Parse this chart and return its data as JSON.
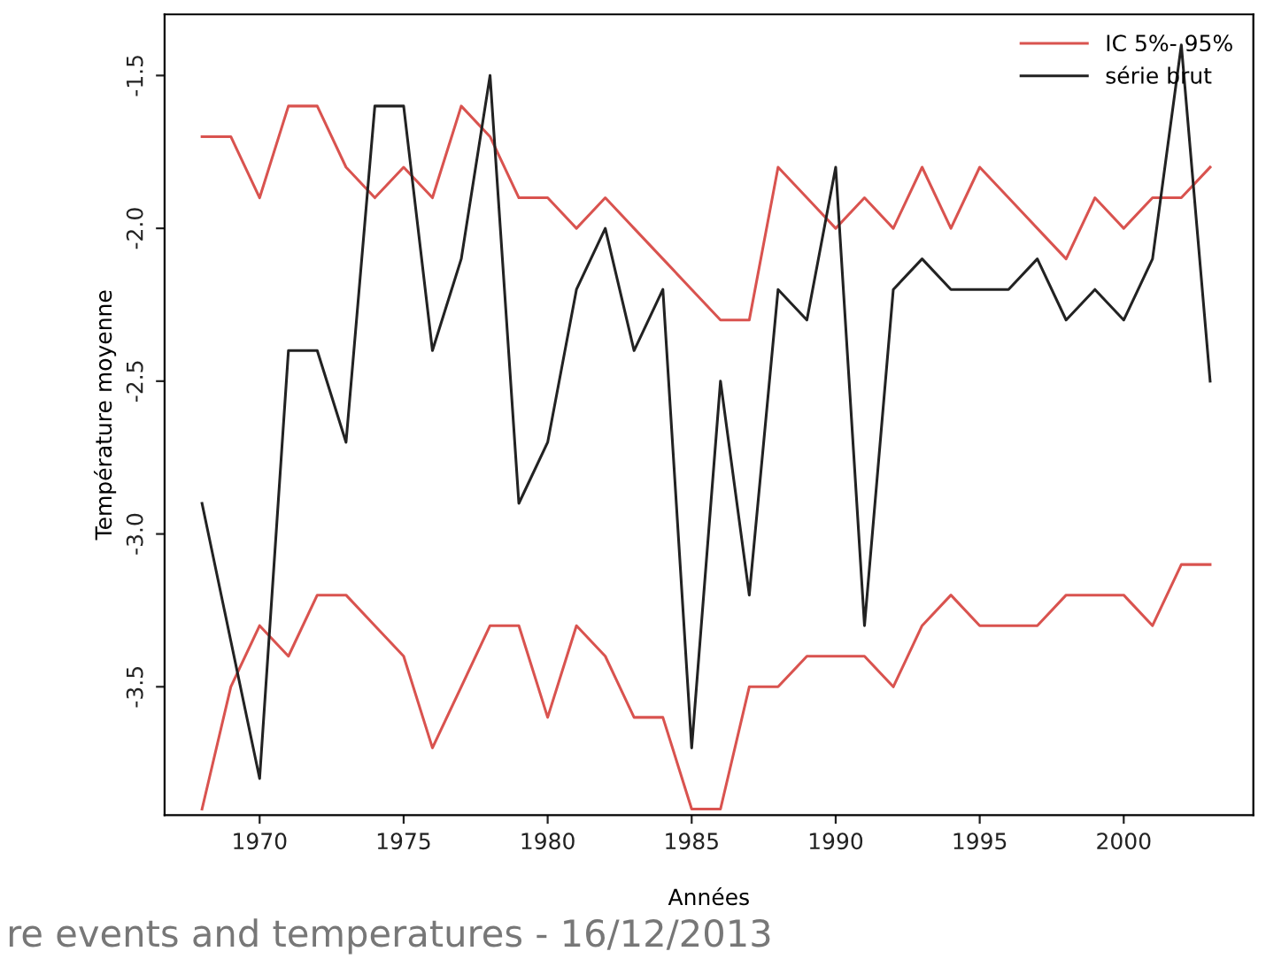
{
  "chart_data": {
    "type": "line",
    "xlabel": "Années",
    "ylabel": "Température moyenne",
    "x": [
      1968,
      1969,
      1970,
      1971,
      1972,
      1973,
      1974,
      1975,
      1976,
      1977,
      1978,
      1979,
      1980,
      1981,
      1982,
      1983,
      1984,
      1985,
      1986,
      1987,
      1988,
      1989,
      1990,
      1991,
      1992,
      1993,
      1994,
      1995,
      1996,
      1997,
      1998,
      1999,
      2000,
      2001,
      2002,
      2003
    ],
    "series": [
      {
        "name": "IC 5%- 95%",
        "color": "#d9534f",
        "values": [
          -1.7,
          -1.7,
          -1.9,
          -1.6,
          -1.6,
          -1.8,
          -1.9,
          -1.8,
          -1.9,
          -1.6,
          -1.7,
          -1.9,
          -1.9,
          -2.0,
          -1.9,
          -2.0,
          -2.1,
          -2.2,
          -2.3,
          -2.3,
          -1.8,
          -1.9,
          -2.0,
          -1.9,
          -2.0,
          -1.8,
          -2.0,
          -1.8,
          -1.9,
          -2.0,
          -2.1,
          -1.9,
          -2.0,
          -1.9,
          -1.9,
          -1.8
        ]
      },
      {
        "color": "#d9534f",
        "values": [
          -3.9,
          -3.5,
          -3.3,
          -3.4,
          -3.2,
          -3.2,
          -3.3,
          -3.4,
          -3.7,
          -3.5,
          -3.3,
          -3.3,
          -3.6,
          -3.3,
          -3.4,
          -3.6,
          -3.6,
          -3.9,
          -3.9,
          -3.5,
          -3.5,
          -3.4,
          -3.4,
          -3.4,
          -3.5,
          -3.3,
          -3.2,
          -3.3,
          -3.3,
          -3.3,
          -3.2,
          -3.2,
          -3.2,
          -3.3,
          -3.1,
          -3.1
        ]
      },
      {
        "name": "série brut",
        "color": "#222222",
        "values": [
          -2.9,
          -3.35,
          -3.8,
          -2.4,
          -2.4,
          -2.7,
          -1.6,
          -1.6,
          -2.4,
          -2.1,
          -1.5,
          -2.9,
          -2.7,
          -2.2,
          -2.0,
          -2.4,
          -2.2,
          -3.7,
          -2.5,
          -3.2,
          -2.2,
          -2.3,
          -1.8,
          -3.3,
          -2.2,
          -2.1,
          -2.2,
          -2.2,
          -2.2,
          -2.1,
          -2.3,
          -2.2,
          -2.3,
          -2.1,
          -1.4,
          -2.5
        ]
      }
    ],
    "xlim": [
      1966.7,
      2004.5
    ],
    "xticks": [
      1970,
      1975,
      1980,
      1985,
      1990,
      1995,
      2000
    ],
    "ylim": [
      -3.92,
      -1.3
    ],
    "yticks": [
      -3.5,
      {
        "value": -3.0,
        "label": "-3.0"
      },
      -2.5,
      {
        "value": -2.0,
        "label": "-2.0"
      },
      -1.5
    ],
    "legend": "top right",
    "grid": false,
    "annotations": [
      "re events and temperatures - 16/12/2013"
    ]
  }
}
